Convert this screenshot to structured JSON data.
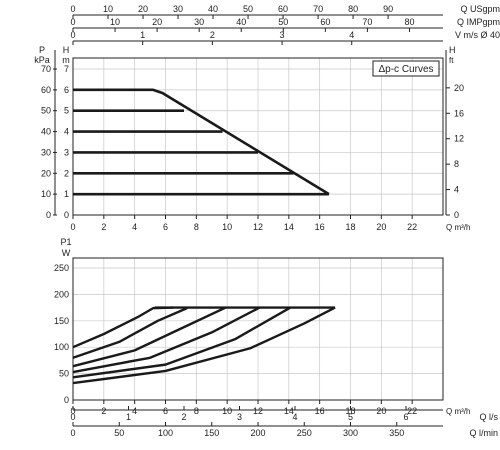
{
  "chart_data": [
    {
      "type": "line",
      "title": "",
      "legend_label": "Δp-c Curves",
      "xlabel": "Q m³/h",
      "xlim": [
        0,
        24
      ],
      "x_ticks": [
        0,
        2,
        4,
        6,
        8,
        10,
        12,
        14,
        16,
        18,
        20,
        22
      ],
      "grid": true,
      "top_axes": [
        {
          "label": "Q USgpm",
          "ticks": [
            0,
            10,
            20,
            30,
            40,
            50,
            60,
            70,
            80,
            90
          ],
          "factor_to_m3h": 0.2271
        },
        {
          "label": "Q IMPgpm",
          "ticks": [
            0,
            10,
            20,
            30,
            40,
            50,
            60,
            70,
            80
          ],
          "factor_to_m3h": 0.2728
        },
        {
          "label": "V m/s Ø 40",
          "ticks": [
            0,
            1,
            2,
            3,
            4
          ],
          "factor_to_m3h": 4.52
        }
      ],
      "left_axes": [
        {
          "unit_top": "P",
          "unit": "kPa",
          "ticks": [
            0,
            10,
            20,
            30,
            40,
            50,
            60,
            70
          ],
          "ylim": [
            0,
            70
          ]
        },
        {
          "unit": "H",
          "unit_sub": "m",
          "ticks": [
            0,
            1,
            2,
            3,
            4,
            5,
            6,
            7
          ],
          "ylim": [
            0,
            7
          ]
        }
      ],
      "right_axis": {
        "unit": "H",
        "unit_sub": "ft",
        "ticks": [
          0,
          4,
          8,
          12,
          16,
          20
        ]
      },
      "series": [
        {
          "x": [
            0,
            5.2,
            5.8,
            16.6
          ],
          "values": [
            6,
            6,
            5.85,
            1
          ]
        },
        {
          "x": [
            0,
            7.2
          ],
          "values": [
            5,
            5
          ]
        },
        {
          "x": [
            0,
            9.7
          ],
          "values": [
            4,
            4
          ]
        },
        {
          "x": [
            0,
            12.0
          ],
          "values": [
            3,
            3
          ]
        },
        {
          "x": [
            0,
            14.3
          ],
          "values": [
            2,
            2
          ]
        },
        {
          "x": [
            0,
            16.6
          ],
          "values": [
            1,
            1
          ]
        }
      ]
    },
    {
      "type": "line",
      "title": "",
      "ylabel": "P1",
      "ylabel_unit": "W",
      "xlabel": "Q m³/h",
      "xlim": [
        0,
        24
      ],
      "ylim": [
        0,
        250
      ],
      "x_ticks": [
        0,
        2,
        4,
        6,
        8,
        10,
        12,
        14,
        16,
        18,
        20,
        22
      ],
      "y_ticks": [
        0,
        50,
        100,
        150,
        200,
        250
      ],
      "grid": true,
      "bottom_axes": [
        {
          "label": "Q l/s",
          "ticks": [
            0,
            1,
            2,
            3,
            4,
            5,
            6
          ],
          "factor_to_m3h": 3.6
        },
        {
          "label": "Q l/min",
          "ticks": [
            0,
            50,
            100,
            150,
            200,
            250,
            300,
            350
          ],
          "factor_to_m3h": 0.06
        }
      ],
      "series": [
        {
          "x": [
            0,
            2.0,
            4.2,
            5.2,
            6.5
          ],
          "values": [
            100,
            125,
            157,
            174,
            175
          ]
        },
        {
          "x": [
            0,
            3.0,
            5.5,
            7.4
          ],
          "values": [
            80,
            110,
            150,
            174
          ]
        },
        {
          "x": [
            0,
            4.0,
            7.2,
            9.9
          ],
          "values": [
            64,
            94,
            138,
            175
          ]
        },
        {
          "x": [
            0,
            5.0,
            9.0,
            12.1
          ],
          "values": [
            53,
            80,
            128,
            175
          ]
        },
        {
          "x": [
            0,
            6.0,
            10.5,
            14.1
          ],
          "values": [
            43,
            67,
            115,
            175
          ]
        },
        {
          "x": [
            0,
            6.0,
            11.5,
            15.0,
            17.0
          ],
          "values": [
            32,
            55,
            98,
            145,
            175
          ]
        },
        {
          "x": [
            17.0,
            5.3
          ],
          "values": [
            175,
            175
          ]
        }
      ]
    }
  ]
}
